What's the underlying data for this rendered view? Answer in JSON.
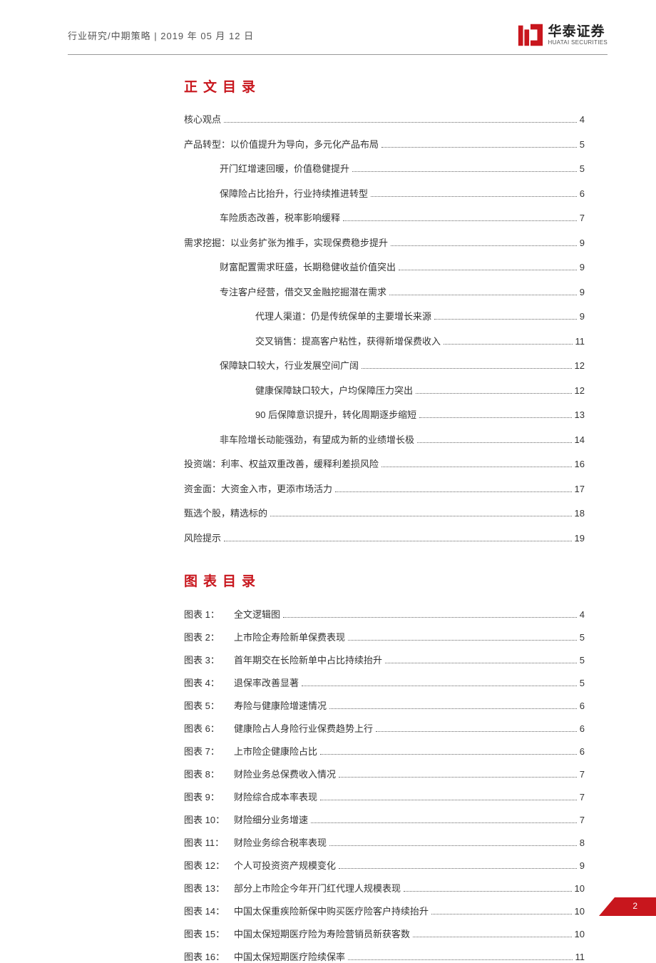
{
  "header": {
    "breadcrumb": "行业研究/中期策略 | 2019 年 05 月 12 日",
    "logo_cn": "华泰证券",
    "logo_en": "HUATAI SECURITIES"
  },
  "sections": {
    "toc_title": "正文目录",
    "fig_title": "图表目录"
  },
  "toc": [
    {
      "level": 1,
      "label": "核心观点",
      "page": "4"
    },
    {
      "level": 1,
      "label": "产品转型：以价值提升为导向，多元化产品布局",
      "page": "5"
    },
    {
      "level": 2,
      "label": "开门红增速回暖，价值稳健提升",
      "page": "5"
    },
    {
      "level": 2,
      "label": "保障险占比抬升，行业持续推进转型",
      "page": "6"
    },
    {
      "level": 2,
      "label": "车险质态改善，税率影响缓释",
      "page": "7"
    },
    {
      "level": 1,
      "label": "需求挖掘：以业务扩张为推手，实现保费稳步提升",
      "page": "9"
    },
    {
      "level": 2,
      "label": "财富配置需求旺盛，长期稳健收益价值突出",
      "page": "9"
    },
    {
      "level": 2,
      "label": "专注客户经营，借交叉金融挖掘潜在需求",
      "page": "9"
    },
    {
      "level": 3,
      "label": "代理人渠道：仍是传统保单的主要增长来源",
      "page": "9"
    },
    {
      "level": 3,
      "label": "交叉销售：提高客户粘性，获得新增保费收入",
      "page": "11"
    },
    {
      "level": 2,
      "label": "保障缺口较大，行业发展空间广阔",
      "page": "12"
    },
    {
      "level": 3,
      "label": "健康保障缺口较大，户均保障压力突出",
      "page": "12"
    },
    {
      "level": 3,
      "label": "90 后保障意识提升，转化周期逐步缩短",
      "page": "13"
    },
    {
      "level": 2,
      "label": "非车险增长动能强劲，有望成为新的业绩增长极",
      "page": "14"
    },
    {
      "level": 1,
      "label": "投资端：利率、权益双重改善，缓释利差损风险",
      "page": "16"
    },
    {
      "level": 1,
      "label": "资金面：大资金入市，更添市场活力",
      "page": "17"
    },
    {
      "level": 1,
      "label": "甄选个股，精选标的",
      "page": "18"
    },
    {
      "level": 1,
      "label": "风险提示",
      "page": "19"
    }
  ],
  "figures": [
    {
      "num": "图表 1：",
      "title": "全文逻辑图",
      "page": "4"
    },
    {
      "num": "图表 2：",
      "title": "上市险企寿险新单保费表现",
      "page": "5"
    },
    {
      "num": "图表 3：",
      "title": "首年期交在长险新单中占比持续抬升",
      "page": "5"
    },
    {
      "num": "图表 4：",
      "title": "退保率改善显著",
      "page": "5"
    },
    {
      "num": "图表 5：",
      "title": "寿险与健康险增速情况",
      "page": "6"
    },
    {
      "num": "图表 6：",
      "title": "健康险占人身险行业保费趋势上行",
      "page": "6"
    },
    {
      "num": "图表 7：",
      "title": "上市险企健康险占比",
      "page": "6"
    },
    {
      "num": "图表 8：",
      "title": "财险业务总保费收入情况",
      "page": "7"
    },
    {
      "num": "图表 9：",
      "title": "财险综合成本率表现",
      "page": "7"
    },
    {
      "num": "图表 10：",
      "title": "财险细分业务增速",
      "page": "7"
    },
    {
      "num": "图表 11：",
      "title": "财险业务综合税率表现",
      "page": "8"
    },
    {
      "num": "图表 12：",
      "title": "个人可投资资产规模变化",
      "page": "9"
    },
    {
      "num": "图表 13：",
      "title": "部分上市险企今年开门红代理人规模表现",
      "page": "10"
    },
    {
      "num": "图表 14：",
      "title": "中国太保重疾险新保中购买医疗险客户持续抬升",
      "page": "10"
    },
    {
      "num": "图表 15：",
      "title": "中国太保短期医疗险为寿险营销员新获客数",
      "page": "10"
    },
    {
      "num": "图表 16：",
      "title": "中国太保短期医疗险续保率",
      "page": "11"
    }
  ],
  "footer": {
    "page_number": "2"
  },
  "colors": {
    "brand_red": "#c8161d"
  }
}
